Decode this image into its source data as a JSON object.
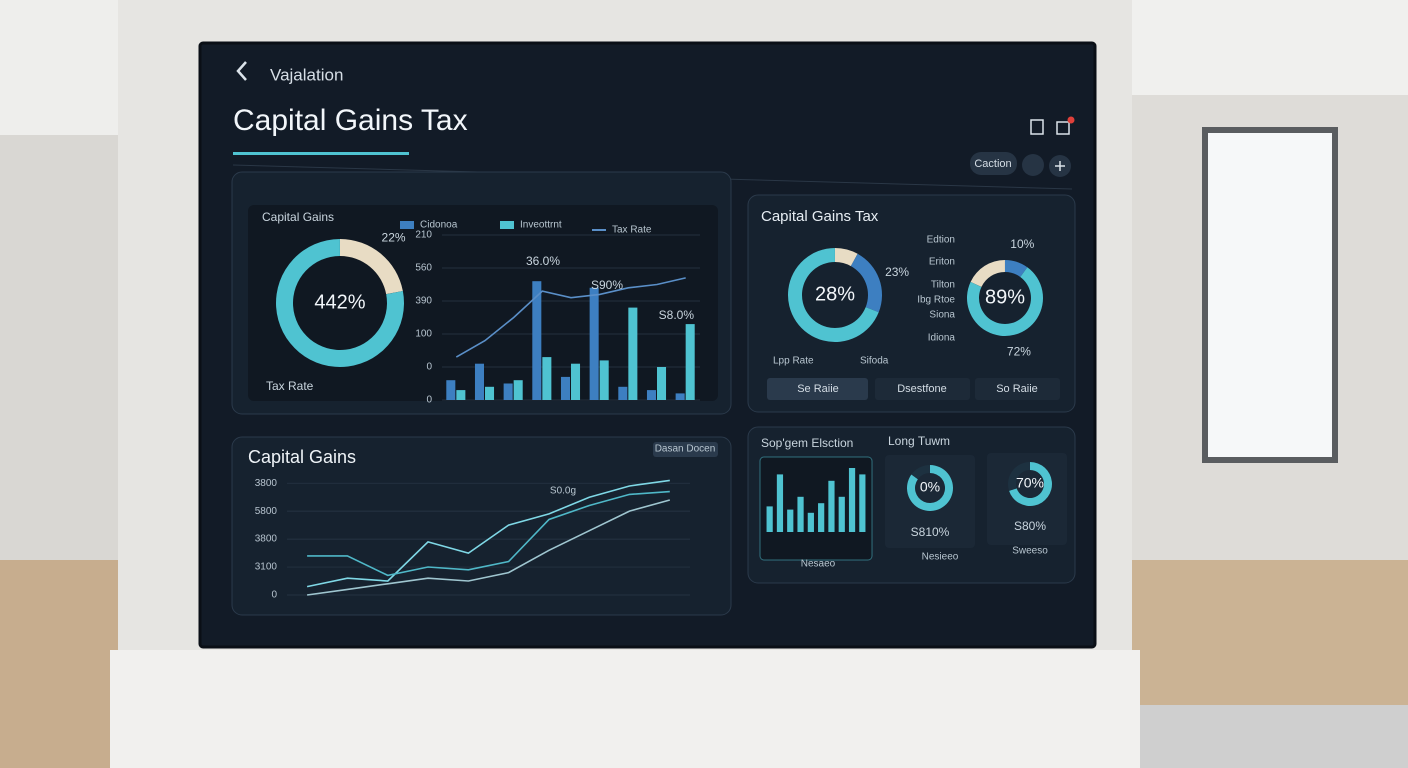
{
  "header": {
    "back": "Vajalation",
    "title": "Capital Gains Tax",
    "button": "Caction"
  },
  "tabs": [
    "Se Raiie",
    "Dsestfone",
    "So Raiie"
  ],
  "chart_data": [
    {
      "type": "pie",
      "title": "Capital Gains",
      "caption": "Tax Rate",
      "center_label": "442%",
      "values": [
        22,
        78
      ],
      "value_labels": [
        "22%",
        null
      ],
      "colors": [
        "#e8dcc4",
        "#4fc3d1"
      ]
    },
    {
      "type": "bar",
      "categories": [
        null,
        null,
        null,
        null,
        null,
        null,
        null,
        null,
        null
      ],
      "series": [
        {
          "name": "Cidonoa",
          "type": "bar",
          "color": "#3d7fc1",
          "values": [
            60,
            110,
            50,
            360,
            70,
            340,
            40,
            30,
            20
          ]
        },
        {
          "name": "Inveottrnt",
          "type": "bar",
          "color": "#4fc3d1",
          "values": [
            30,
            40,
            60,
            130,
            110,
            120,
            280,
            100,
            230
          ]
        },
        {
          "name": "Tax Rate",
          "type": "line",
          "color": "#5a8fc8",
          "values": [
            130,
            180,
            250,
            330,
            310,
            320,
            340,
            350,
            370
          ]
        }
      ],
      "ylim": [
        0,
        500
      ],
      "yticks": [
        0,
        {
          "value": 100,
          "label": "0"
        },
        {
          "value": 200,
          "label": "100"
        },
        {
          "value": 300,
          "label": "390"
        },
        {
          "value": 400,
          "label": "560"
        },
        {
          "value": 500,
          "label": "210"
        }
      ],
      "grid": true,
      "annotations": [
        "36.0%",
        "S90%",
        "S8.0%"
      ]
    },
    {
      "type": "pie",
      "title": "Capital Gains Tax",
      "center_label": "28%",
      "values": [
        8,
        23,
        69
      ],
      "value_labels": [
        null,
        "23%",
        null
      ],
      "colors": [
        "#e8dcc4",
        "#3d7fc1",
        "#4fc3d1"
      ],
      "side_labels": [
        "Lpp Rate",
        "Sifoda"
      ]
    },
    {
      "type": "pie",
      "center_label": "89%",
      "values": [
        10,
        72,
        18
      ],
      "value_labels": [
        "10%",
        "72%",
        null
      ],
      "colors": [
        "#3d7fc1",
        "#4fc3d1",
        "#e8dcc4"
      ],
      "side_labels": [
        "Edtion",
        "Eriton",
        "Tilton",
        "Ibg Rtoe",
        "Siona",
        "Idiona"
      ]
    },
    {
      "type": "line",
      "title": "Capital Gains",
      "button": "Dasan Docen",
      "categories": [
        null,
        null,
        null,
        null,
        null,
        null,
        null,
        null,
        null,
        null
      ],
      "series": [
        {
          "color": "#7fd8e6",
          "values": [
            300,
            600,
            500,
            1900,
            1500,
            2500,
            2900,
            3500,
            3900,
            4100
          ]
        },
        {
          "color": "#4fb8c8",
          "values": [
            1400,
            1400,
            700,
            1000,
            900,
            1200,
            2700,
            3200,
            3600,
            3700
          ]
        },
        {
          "color": "#9fc6d0",
          "values": [
            0,
            200,
            400,
            600,
            500,
            800,
            1600,
            2300,
            3000,
            3400
          ]
        }
      ],
      "ylim": [
        0,
        4400
      ],
      "yticks": [
        0,
        {
          "value": 1000,
          "label": "3100"
        },
        {
          "value": 2000,
          "label": "3800"
        },
        {
          "value": 3000,
          "label": "5800"
        },
        {
          "value": 4000,
          "label": "3800"
        }
      ],
      "grid": true,
      "annotations": [
        "S0.0g"
      ]
    },
    {
      "type": "bar",
      "title": "Sop'gem Elsction",
      "footer": "Nesaeo",
      "categories": [
        null,
        null,
        null,
        null,
        null,
        null,
        null,
        null,
        null,
        null
      ],
      "series": [
        {
          "type": "bar",
          "color": "#4fc3d1",
          "values": [
            40,
            90,
            35,
            55,
            30,
            45,
            80,
            55,
            100,
            90
          ]
        }
      ],
      "ylim": [
        0,
        100
      ]
    },
    {
      "type": "pie",
      "title": "Long Tuwm",
      "center_label": "0%",
      "caption": "S810%",
      "footer": "Nesieeo",
      "values": [
        85,
        15
      ],
      "colors": [
        "#4fc3d1",
        "#1d3140"
      ]
    },
    {
      "type": "pie",
      "center_label": "70%",
      "caption": "S80%",
      "footer": "Sweeso",
      "values": [
        70,
        30
      ],
      "colors": [
        "#4fc3d1",
        "#1d3140"
      ]
    }
  ]
}
